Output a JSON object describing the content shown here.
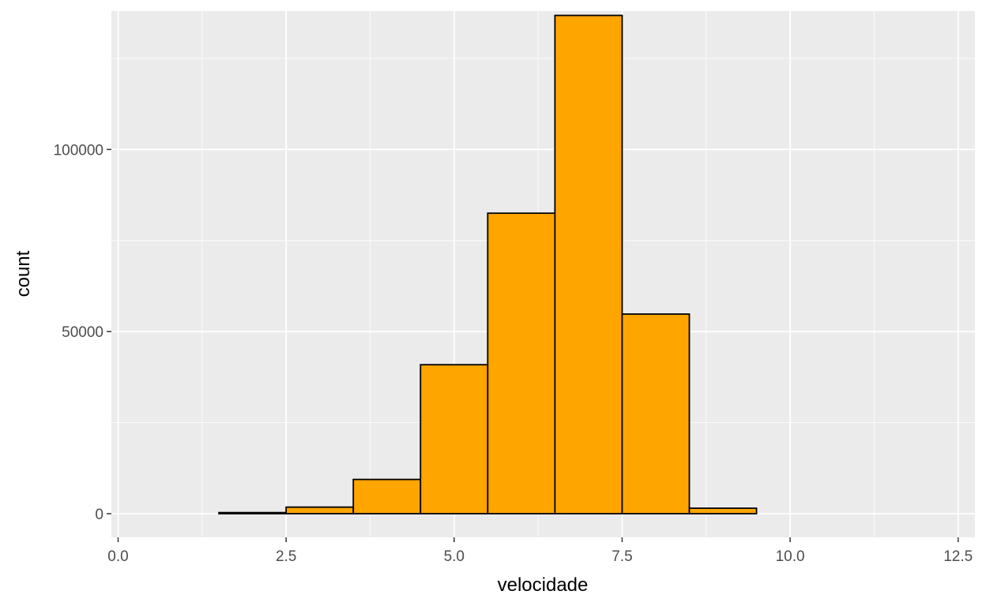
{
  "chart_data": {
    "type": "bar",
    "xlabel": "velocidade",
    "ylabel": "count",
    "xlim": [
      -0.1,
      12.75
    ],
    "ylim": [
      -6500,
      138000
    ],
    "x_ticks": [
      0,
      2.5,
      5,
      7.5,
      10,
      12.5
    ],
    "x_tick_labels": [
      "0.0",
      "2.5",
      "5.0",
      "7.5",
      "10.0",
      "12.5"
    ],
    "y_ticks": [
      0,
      50000,
      100000
    ],
    "y_tick_labels": [
      "0",
      "50000",
      "100000"
    ],
    "bins": [
      {
        "x0": 0.5,
        "x1": 1.5,
        "count": 0
      },
      {
        "x0": 1.5,
        "x1": 2.5,
        "count": 300
      },
      {
        "x0": 2.5,
        "x1": 3.5,
        "count": 1800
      },
      {
        "x0": 3.5,
        "x1": 4.5,
        "count": 9400
      },
      {
        "x0": 4.5,
        "x1": 5.5,
        "count": 40900
      },
      {
        "x0": 5.5,
        "x1": 6.5,
        "count": 82500
      },
      {
        "x0": 6.5,
        "x1": 7.5,
        "count": 136800
      },
      {
        "x0": 7.5,
        "x1": 8.5,
        "count": 54800
      },
      {
        "x0": 8.5,
        "x1": 9.5,
        "count": 1500
      },
      {
        "x0": 9.5,
        "x1": 10.5,
        "count": 0
      },
      {
        "x0": 10.5,
        "x1": 11.5,
        "count": 0
      },
      {
        "x0": 11.5,
        "x1": 12.5,
        "count": 0
      }
    ],
    "fill_color": "#FFA500",
    "outline_color": "#000000",
    "panel_color": "#EBEBEB",
    "grid_color": "#FFFFFF",
    "grid": true,
    "legend": "none"
  }
}
